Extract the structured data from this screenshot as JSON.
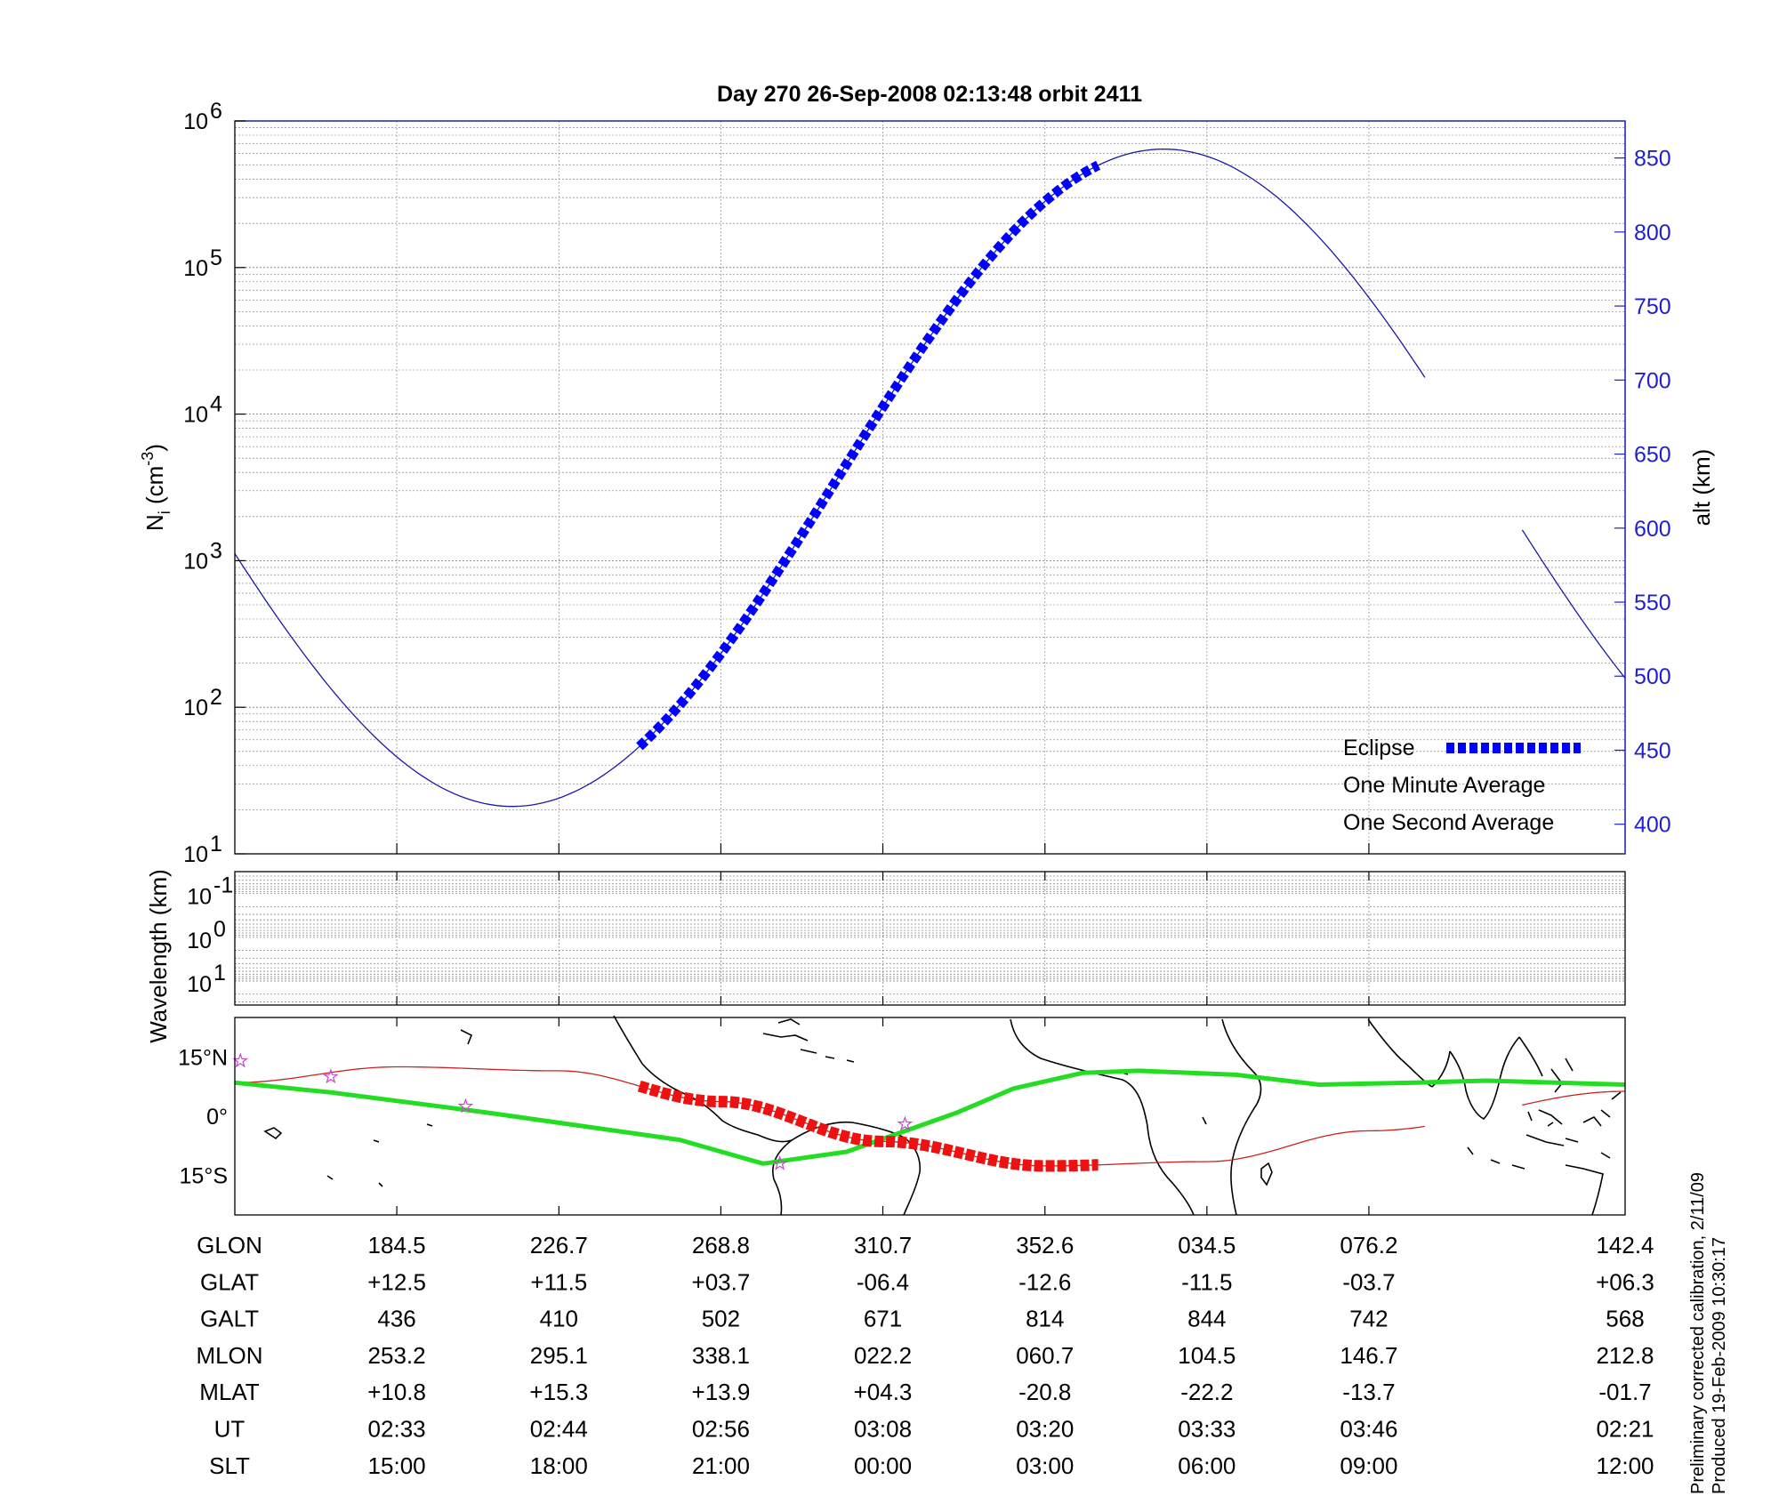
{
  "chart_data": [
    {
      "type": "line",
      "title": "Day 270  26-Sep-2008 02:13:48   orbit 2411",
      "ylabel": "N",
      "ylabel_sub": "i",
      "ylabel_unit": " (cm",
      "ylabel_unit_exp": "-3",
      "ylabel_unit_close": ")",
      "yscale": "log",
      "ylim": [
        10,
        1000000
      ],
      "y_tick_base": "10",
      "y_tick_exponents": [
        "1",
        "2",
        "3",
        "4",
        "5",
        "6"
      ],
      "y2label": "alt (km)",
      "y2lim": [
        380,
        875
      ],
      "y2_ticks": [
        "400",
        "450",
        "500",
        "550",
        "600",
        "650",
        "700",
        "750",
        "800",
        "850"
      ],
      "grid": true,
      "legend_placement": "bottom-right",
      "series": [
        {
          "name": "Eclipse",
          "color": "#0000ff",
          "style": "thick-dashed",
          "axis": "alt",
          "x_range": [
            0.291,
            0.621
          ]
        },
        {
          "name": "One Minute Average",
          "color": "#000000",
          "values": []
        },
        {
          "name": "One Second Average",
          "color": "#00dd00",
          "values": []
        },
        {
          "name": "alt (km)",
          "color": "#1a1aaa",
          "style": "thin",
          "axis": "alt",
          "altitude_model": {
            "mean": 634,
            "amplitude": 222,
            "peak_x": 0.668,
            "period_x": 0.937
          },
          "gap_x": [
            0.856,
            0.926
          ]
        }
      ]
    },
    {
      "type": "line",
      "ylabel": "Wavelength (km)",
      "yscale": "log",
      "y_tick_base": "10",
      "y_tick_exponents": [
        "-1",
        "0",
        "1"
      ],
      "grid": true,
      "series": []
    },
    {
      "type": "map",
      "y_ticks": [
        "15°N",
        "0°",
        "15°S"
      ],
      "ylim": [
        -25,
        25
      ],
      "orbit_track": {
        "color": "#cc2222",
        "lat_amplitude": 13,
        "gap_x": [
          0.856,
          0.926
        ]
      },
      "eclipse_track": {
        "color": "#ee1111",
        "x_range": [
          0.291,
          0.621
        ]
      },
      "magnetic_equator": {
        "color": "#22dd22",
        "points": [
          [
            0,
            8.5
          ],
          [
            0.07,
            6
          ],
          [
            0.18,
            1
          ],
          [
            0.32,
            -6
          ],
          [
            0.38,
            -12
          ],
          [
            0.44,
            -9
          ],
          [
            0.52,
            1
          ],
          [
            0.56,
            7
          ],
          [
            0.61,
            11
          ],
          [
            0.65,
            11.5
          ],
          [
            0.72,
            10.5
          ],
          [
            0.78,
            8
          ],
          [
            0.85,
            8.5
          ],
          [
            0.9,
            9
          ],
          [
            1,
            8
          ]
        ]
      },
      "stars": [
        [
          0.004,
          14
        ],
        [
          0.069,
          10
        ],
        [
          0.166,
          2.5
        ],
        [
          0.482,
          -2
        ],
        [
          0.392,
          -12
        ]
      ]
    }
  ],
  "ephemeris": {
    "row_labels": [
      "GLON",
      "GLAT",
      "GALT",
      "MLON",
      "MLAT",
      "UT",
      "SLT"
    ],
    "columns": [
      [
        "184.5",
        "+12.5",
        "436",
        "253.2",
        "+10.8",
        "02:33",
        "15:00"
      ],
      [
        "226.7",
        "+11.5",
        "410",
        "295.1",
        "+15.3",
        "02:44",
        "18:00"
      ],
      [
        "268.8",
        "+03.7",
        "502",
        "338.1",
        "+13.9",
        "02:56",
        "21:00"
      ],
      [
        "310.7",
        "-06.4",
        "671",
        "022.2",
        "+04.3",
        "03:08",
        "00:00"
      ],
      [
        "352.6",
        "-12.6",
        "814",
        "060.7",
        "-20.8",
        "03:20",
        "03:00"
      ],
      [
        "034.5",
        "-11.5",
        "844",
        "104.5",
        "-22.2",
        "03:33",
        "06:00"
      ],
      [
        "076.2",
        "-03.7",
        "742",
        "146.7",
        "-13.7",
        "03:46",
        "09:00"
      ],
      [
        "142.4",
        "+06.3",
        "568",
        "212.8",
        "-01.7",
        "02:21",
        "12:00"
      ]
    ],
    "column_fractions": [
      0.1165,
      0.2331,
      0.3496,
      0.4661,
      0.5827,
      0.6992,
      0.8157,
      1.0
    ]
  },
  "notes": {
    "calibration": "Preliminary corrected calibration, 2/11/09",
    "produced": "Produced 19-Feb-2009 10:30:17"
  },
  "colors": {
    "alt_axis": "#1f1fd0",
    "eclipse": "#0000ff",
    "one_second": "#00dd00",
    "track": "#cc2222",
    "eclipse_track": "#ee1111"
  }
}
